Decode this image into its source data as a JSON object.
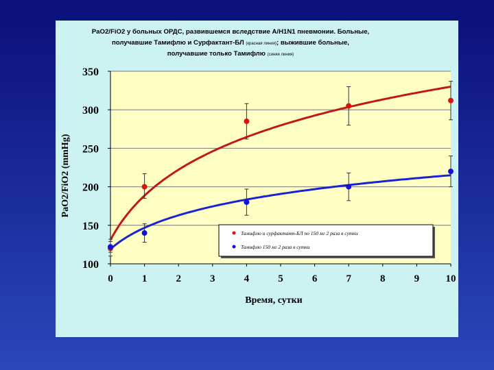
{
  "chart_data": {
    "type": "line",
    "title_lines": [
      {
        "main": "PaO2/FiO2 у больных ОРДС, развившемся вследствие  A/H1N1 пневмонии. Больные,",
        "small": ""
      },
      {
        "main": "получавшие Тамифлю и Сурфактант-БЛ ",
        "small": "(красная линия)",
        "tail": "; выжившие больные,"
      },
      {
        "main": "получавшие только Тамифлю ",
        "small": "(синяя линия)",
        "tail": ""
      }
    ],
    "xlabel": "Время, сутки",
    "ylabel": "PaO2/FiO2 (mmHg)",
    "xlim": [
      0,
      10
    ],
    "ylim": [
      100,
      350
    ],
    "xticks": [
      0,
      1,
      2,
      3,
      4,
      5,
      6,
      7,
      8,
      9,
      10
    ],
    "yticks": [
      100,
      150,
      200,
      250,
      300,
      350
    ],
    "grid": true,
    "legend_position": "bottom-right",
    "series": [
      {
        "name": "Тамифлю и сурфактант-БЛ  по 150 мг 2 раза в сутки",
        "color": "#e01010",
        "line_color": "#c01818",
        "points": [
          {
            "x": 0,
            "y": 120,
            "err_low": 110,
            "err_high": 132
          },
          {
            "x": 1,
            "y": 200,
            "err_low": 185,
            "err_high": 217
          },
          {
            "x": 4,
            "y": 285,
            "err_low": 262,
            "err_high": 308
          },
          {
            "x": 7,
            "y": 305,
            "err_low": 280,
            "err_high": 330
          },
          {
            "x": 10,
            "y": 312,
            "err_low": 287,
            "err_high": 337
          }
        ],
        "fit": {
          "x0": 0,
          "y0": 131,
          "y10": 330
        }
      },
      {
        "name": "Тамифлю  150 мг 2 раза в сутки",
        "color": "#1010e0",
        "line_color": "#1a22d8",
        "points": [
          {
            "x": 0,
            "y": 122,
            "err_low": 115,
            "err_high": 129
          },
          {
            "x": 1,
            "y": 140,
            "err_low": 128,
            "err_high": 152
          },
          {
            "x": 4,
            "y": 180,
            "err_low": 163,
            "err_high": 197
          },
          {
            "x": 7,
            "y": 200,
            "err_low": 182,
            "err_high": 218
          },
          {
            "x": 10,
            "y": 220,
            "err_low": 200,
            "err_high": 240
          }
        ],
        "fit": {
          "x0": 0,
          "y0": 119,
          "y10": 215
        }
      }
    ]
  }
}
